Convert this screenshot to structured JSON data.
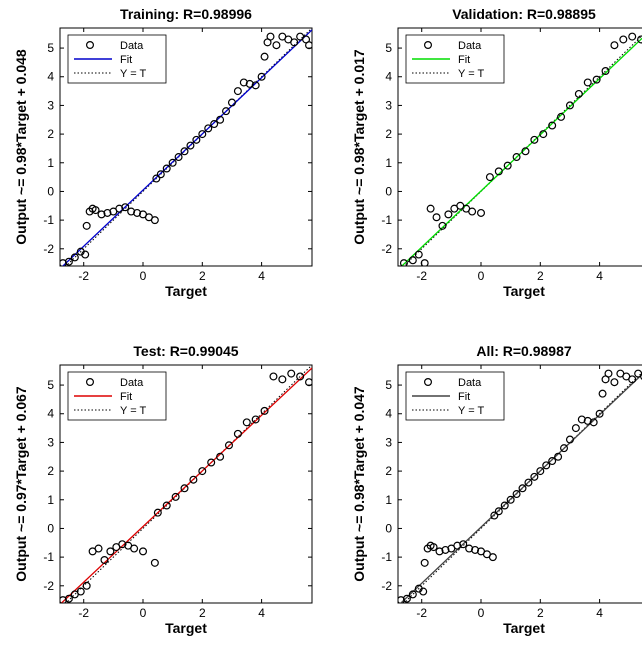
{
  "chart_data": [
    {
      "type": "scatter",
      "title": "Training: R=0.98996",
      "xlabel": "Target",
      "ylabel": "Output ~= 0.98*Target + 0.048",
      "fit_color": "#0000cc",
      "slope": 0.98,
      "intercept": 0.048,
      "xlim": [
        -2.8,
        5.7
      ],
      "ylim": [
        -2.6,
        5.7
      ],
      "xticks": [
        "-2",
        "0",
        "2",
        "4"
      ],
      "yticks": [
        "-2",
        "-1",
        "0",
        "1",
        "2",
        "3",
        "4",
        "5"
      ],
      "legend": [
        "Data",
        "Fit",
        "Y = T"
      ],
      "legend_position": "top-left",
      "x": [
        -2.7,
        -2.5,
        -2.3,
        -2.1,
        -1.95,
        -1.9,
        -1.8,
        -1.7,
        -1.6,
        -1.4,
        -1.2,
        -1.0,
        -0.8,
        -0.6,
        -0.4,
        -0.2,
        0.0,
        0.2,
        0.4,
        0.45,
        0.6,
        0.8,
        1.0,
        1.2,
        1.4,
        1.6,
        1.8,
        2.0,
        2.2,
        2.4,
        2.6,
        2.8,
        3.0,
        3.2,
        3.4,
        3.6,
        3.8,
        4.0,
        4.1,
        4.2,
        4.3,
        4.5,
        4.7,
        4.9,
        5.1,
        5.3,
        5.5,
        5.6
      ],
      "y": [
        -2.5,
        -2.45,
        -2.3,
        -2.1,
        -2.2,
        -1.2,
        -0.7,
        -0.6,
        -0.65,
        -0.8,
        -0.75,
        -0.7,
        -0.6,
        -0.55,
        -0.7,
        -0.75,
        -0.8,
        -0.9,
        -1.0,
        0.45,
        0.6,
        0.8,
        1.0,
        1.2,
        1.4,
        1.6,
        1.8,
        2.0,
        2.2,
        2.35,
        2.5,
        2.8,
        3.1,
        3.5,
        3.8,
        3.75,
        3.7,
        4.0,
        4.7,
        5.2,
        5.4,
        5.1,
        5.4,
        5.3,
        5.2,
        5.4,
        5.3,
        5.1
      ]
    },
    {
      "type": "scatter",
      "title": "Validation: R=0.98895",
      "xlabel": "Target",
      "ylabel": "Output ~= 0.98*Target + 0.017",
      "fit_color": "#00dd00",
      "slope": 0.98,
      "intercept": 0.017,
      "xlim": [
        -2.8,
        5.7
      ],
      "ylim": [
        -2.6,
        5.7
      ],
      "xticks": [
        "-2",
        "0",
        "2",
        "4"
      ],
      "yticks": [
        "-2",
        "-1",
        "0",
        "1",
        "2",
        "3",
        "4",
        "5"
      ],
      "legend": [
        "Data",
        "Fit",
        "Y = T"
      ],
      "legend_position": "top-left",
      "x": [
        -2.6,
        -2.3,
        -2.1,
        -1.9,
        -1.7,
        -1.5,
        -1.3,
        -1.1,
        -0.9,
        -0.7,
        -0.5,
        -0.3,
        0.0,
        0.3,
        0.6,
        0.9,
        1.2,
        1.5,
        1.8,
        2.1,
        2.4,
        2.7,
        3.0,
        3.3,
        3.6,
        3.9,
        4.2,
        4.5,
        4.8,
        5.1,
        5.4,
        5.6
      ],
      "y": [
        -2.5,
        -2.4,
        -2.2,
        -2.5,
        -0.6,
        -0.9,
        -1.2,
        -0.8,
        -0.6,
        -0.5,
        -0.6,
        -0.7,
        -0.75,
        0.5,
        0.7,
        0.9,
        1.2,
        1.4,
        1.8,
        2.0,
        2.3,
        2.6,
        3.0,
        3.4,
        3.8,
        3.9,
        4.2,
        5.1,
        5.3,
        5.4,
        5.3,
        5.2
      ]
    },
    {
      "type": "scatter",
      "title": "Test: R=0.99045",
      "xlabel": "Target",
      "ylabel": "Output ~= 0.97*Target + 0.067",
      "fit_color": "#dd0000",
      "slope": 0.97,
      "intercept": 0.067,
      "xlim": [
        -2.8,
        5.7
      ],
      "ylim": [
        -2.6,
        5.7
      ],
      "xticks": [
        "-2",
        "0",
        "2",
        "4"
      ],
      "yticks": [
        "-2",
        "-1",
        "0",
        "1",
        "2",
        "3",
        "4",
        "5"
      ],
      "legend": [
        "Data",
        "Fit",
        "Y = T"
      ],
      "legend_position": "top-left",
      "x": [
        -2.7,
        -2.5,
        -2.3,
        -2.1,
        -1.9,
        -1.7,
        -1.5,
        -1.3,
        -1.1,
        -0.9,
        -0.7,
        -0.5,
        -0.3,
        0.0,
        0.4,
        0.5,
        0.8,
        1.1,
        1.4,
        1.7,
        2.0,
        2.3,
        2.6,
        2.9,
        3.2,
        3.5,
        3.8,
        4.1,
        4.4,
        4.7,
        5.0,
        5.3,
        5.6
      ],
      "y": [
        -2.5,
        -2.45,
        -2.3,
        -2.2,
        -2.0,
        -0.8,
        -0.7,
        -1.1,
        -0.8,
        -0.65,
        -0.55,
        -0.6,
        -0.7,
        -0.8,
        -1.2,
        0.55,
        0.8,
        1.1,
        1.4,
        1.7,
        2.0,
        2.3,
        2.5,
        2.9,
        3.3,
        3.7,
        3.8,
        4.1,
        5.3,
        5.2,
        5.4,
        5.3,
        5.1
      ]
    },
    {
      "type": "scatter",
      "title": "All: R=0.98987",
      "xlabel": "Target",
      "ylabel": "Output ~= 0.98*Target + 0.047",
      "fit_color": "#444444",
      "slope": 0.98,
      "intercept": 0.047,
      "xlim": [
        -2.8,
        5.7
      ],
      "ylim": [
        -2.6,
        5.7
      ],
      "xticks": [
        "-2",
        "0",
        "2",
        "4"
      ],
      "yticks": [
        "-2",
        "-1",
        "0",
        "1",
        "2",
        "3",
        "4",
        "5"
      ],
      "legend": [
        "Data",
        "Fit",
        "Y = T"
      ],
      "legend_position": "top-left",
      "x": [
        -2.7,
        -2.5,
        -2.3,
        -2.1,
        -1.95,
        -1.9,
        -1.8,
        -1.7,
        -1.6,
        -1.4,
        -1.2,
        -1.0,
        -0.8,
        -0.6,
        -0.4,
        -0.2,
        0.0,
        0.2,
        0.4,
        0.45,
        0.6,
        0.8,
        1.0,
        1.2,
        1.4,
        1.6,
        1.8,
        2.0,
        2.2,
        2.4,
        2.6,
        2.8,
        3.0,
        3.2,
        3.4,
        3.6,
        3.8,
        4.0,
        4.1,
        4.2,
        4.3,
        4.5,
        4.7,
        4.9,
        5.1,
        5.3,
        5.5,
        5.6
      ],
      "y": [
        -2.5,
        -2.45,
        -2.3,
        -2.1,
        -2.2,
        -1.2,
        -0.7,
        -0.6,
        -0.65,
        -0.8,
        -0.75,
        -0.7,
        -0.6,
        -0.55,
        -0.7,
        -0.75,
        -0.8,
        -0.9,
        -1.0,
        0.45,
        0.6,
        0.8,
        1.0,
        1.2,
        1.4,
        1.6,
        1.8,
        2.0,
        2.2,
        2.35,
        2.5,
        2.8,
        3.1,
        3.5,
        3.8,
        3.75,
        3.7,
        4.0,
        4.7,
        5.2,
        5.4,
        5.1,
        5.4,
        5.3,
        5.2,
        5.4,
        5.3,
        5.1
      ]
    }
  ]
}
